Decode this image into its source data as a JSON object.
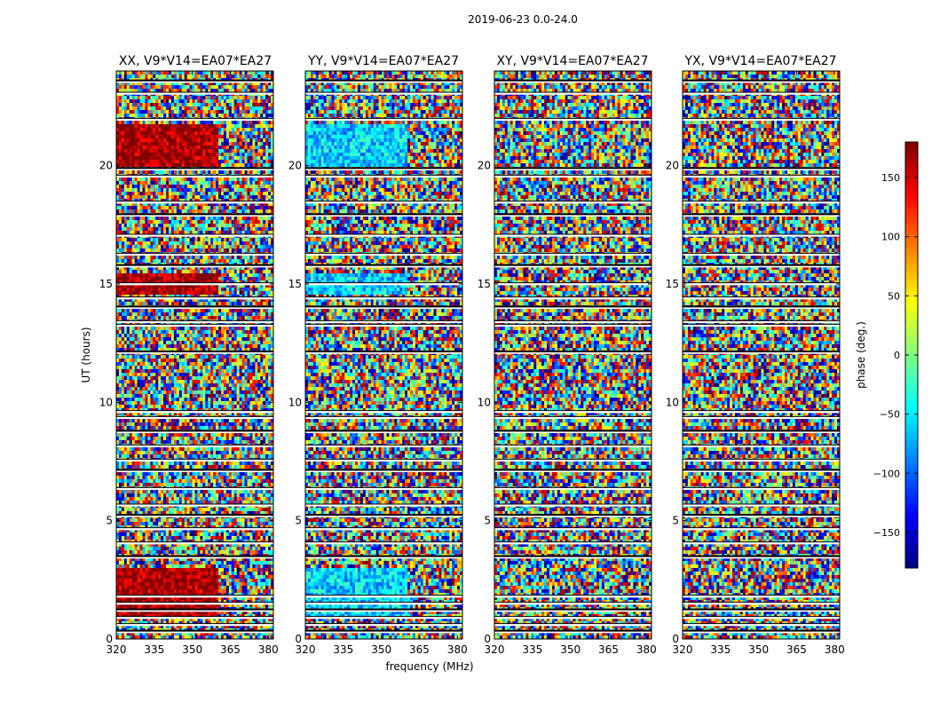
{
  "chart_data": {
    "type": "heatmap",
    "suptitle": "2019-06-23 0.0-24.0",
    "xlabel": "frequency (MHz)",
    "ylabel": "UT (hours)",
    "xlim": [
      320,
      382
    ],
    "ylim": [
      0,
      24
    ],
    "x_ticks": [
      320,
      335,
      350,
      365,
      380
    ],
    "y_ticks": [
      0,
      5,
      10,
      15,
      20
    ],
    "panels": [
      {
        "title": "XX, V9*V14=EA07*EA27",
        "mean_phase_deg": 170
      },
      {
        "title": "YY, V9*V14=EA07*EA27",
        "mean_phase_deg": -60
      },
      {
        "title": "XY, V9*V14=EA07*EA27",
        "mean_phase_deg": 0
      },
      {
        "title": "YX, V9*V14=EA07*EA27",
        "mean_phase_deg": 0
      }
    ],
    "colorbar": {
      "label": "phase (deg.)",
      "range": [
        -180,
        180
      ],
      "ticks": [
        -150,
        -100,
        -50,
        0,
        50,
        100,
        150
      ],
      "colormap": "jet"
    },
    "flagged_ut_bands": [
      [
        0.25,
        0.35
      ],
      [
        0.55,
        0.65
      ],
      [
        0.85,
        0.95
      ],
      [
        1.15,
        1.25
      ],
      [
        1.45,
        1.55
      ],
      [
        1.75,
        1.85
      ],
      [
        3.4,
        3.5
      ],
      [
        4.0,
        4.1
      ],
      [
        4.6,
        4.7
      ],
      [
        5.15,
        5.25
      ],
      [
        5.6,
        5.7
      ],
      [
        6.3,
        6.4
      ],
      [
        7.05,
        7.15
      ],
      [
        7.5,
        7.6
      ],
      [
        8.1,
        8.2
      ],
      [
        8.7,
        8.8
      ],
      [
        9.3,
        9.4
      ],
      [
        9.55,
        9.65
      ],
      [
        12.05,
        12.15
      ],
      [
        13.2,
        13.3
      ],
      [
        13.35,
        13.45
      ],
      [
        13.95,
        14.05
      ],
      [
        14.35,
        14.45
      ],
      [
        14.95,
        15.05
      ],
      [
        15.7,
        15.8
      ],
      [
        16.2,
        16.3
      ],
      [
        17.0,
        17.1
      ],
      [
        17.85,
        17.95
      ],
      [
        18.4,
        18.5
      ],
      [
        19.5,
        19.6
      ],
      [
        19.8,
        19.9
      ],
      [
        21.9,
        22.0
      ],
      [
        23.0,
        23.1
      ],
      [
        23.5,
        23.6
      ]
    ]
  }
}
